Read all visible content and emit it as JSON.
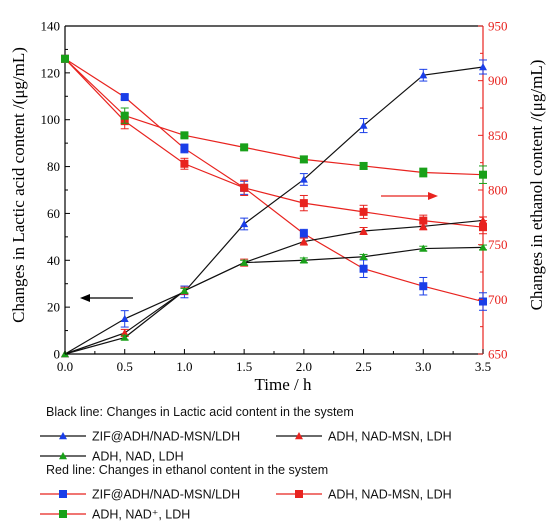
{
  "chart_data": {
    "type": "line",
    "xlabel": "Time / h",
    "ylabel_left": "Changes in Lactic acid content /(μg/mL)",
    "ylabel_right": "Changes in ethanol content /(μg/mL)",
    "xlim": [
      0.0,
      3.5
    ],
    "ylim_left": [
      0,
      140
    ],
    "ylim_right": [
      650,
      950
    ],
    "x_ticks": [
      "0.0",
      "0.5",
      "1.0",
      "1.5",
      "2.0",
      "2.5",
      "3.0",
      "3.5"
    ],
    "y_left_ticks": [
      "0",
      "20",
      "40",
      "60",
      "80",
      "100",
      "120",
      "140"
    ],
    "y_right_ticks": [
      "650",
      "700",
      "750",
      "800",
      "850",
      "900",
      "950"
    ],
    "x": [
      0.0,
      0.5,
      1.0,
      1.5,
      2.0,
      2.5,
      3.0,
      3.5
    ],
    "grid": false,
    "black_series": [
      {
        "label": "ZIF@ADH/NAD-MSN/LDH",
        "marker": "triangle",
        "color": "#1a3ee8",
        "values": [
          0,
          15,
          26.5,
          55.5,
          74.5,
          97.5,
          119,
          122.5
        ],
        "errors": [
          0,
          3.5,
          2.5,
          2.5,
          2.5,
          3.0,
          2.5,
          3.0
        ]
      },
      {
        "label": "ADH, NAD-MSN, LDH",
        "marker": "triangle",
        "color": "#e8231f",
        "values": [
          0,
          9,
          27,
          39,
          48,
          52.5,
          54.5,
          57
        ],
        "errors": [
          0,
          1.5,
          1.5,
          1.5,
          1.5,
          1.5,
          1.5,
          1.5
        ]
      },
      {
        "label": "ADH, NAD, LDH",
        "marker": "triangle",
        "color": "#19a019",
        "values": [
          0,
          7,
          27,
          39,
          40,
          41.5,
          45,
          45.5
        ],
        "errors": [
          0,
          1.0,
          1.0,
          1.0,
          1.0,
          1.0,
          1.0,
          1.0
        ]
      }
    ],
    "red_series": [
      {
        "label": "ZIF@ADH/NAD-MSN/LDH",
        "marker": "square",
        "color": "#1a3ee8",
        "values": [
          920,
          885,
          838,
          802,
          760,
          728,
          712,
          698
        ],
        "errors": [
          0,
          2,
          4,
          6,
          4,
          8,
          8,
          8
        ]
      },
      {
        "label": "ADH, NAD-MSN, LDH",
        "marker": "square",
        "color": "#e8231f",
        "values": [
          920,
          863,
          824,
          802,
          788,
          780,
          772,
          766
        ],
        "errors": [
          0,
          7,
          5,
          7,
          7,
          6,
          5,
          6
        ]
      },
      {
        "label": "ADH, NAD⁺, LDH",
        "marker": "square",
        "color": "#19a019",
        "values": [
          920,
          868,
          850,
          839,
          828,
          822,
          816,
          814
        ],
        "errors": [
          0,
          7,
          2,
          2,
          3,
          3,
          4,
          8
        ]
      }
    ],
    "legend": {
      "black_heading": "Black line: Changes in Lactic acid content in the system",
      "red_heading": "Red line: Changes in ethanol content in the system"
    }
  }
}
